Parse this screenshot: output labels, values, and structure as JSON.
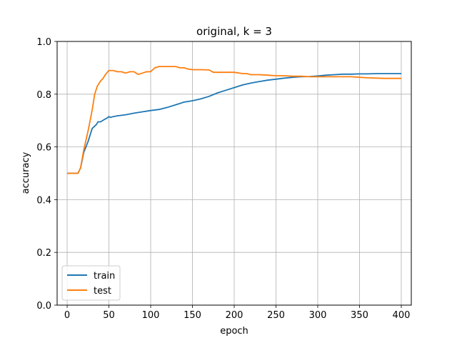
{
  "chart_data": {
    "type": "line",
    "title": "original, k = 3",
    "xlabel": "epoch",
    "ylabel": "accuracy",
    "xlim": [
      -12,
      412
    ],
    "ylim": [
      0.0,
      1.0
    ],
    "xticks": [
      0,
      50,
      100,
      150,
      200,
      250,
      300,
      350,
      400
    ],
    "yticks": [
      0.0,
      0.2,
      0.4,
      0.6,
      0.8,
      1.0
    ],
    "ytick_labels": [
      "0.0",
      "0.2",
      "0.4",
      "0.6",
      "0.8",
      "1.0"
    ],
    "grid": true,
    "legend_position": "lower-left",
    "series": [
      {
        "name": "train",
        "color": "#1f77b4",
        "x": [
          0,
          13,
          16,
          20,
          25,
          30,
          35,
          37,
          40,
          45,
          48,
          50,
          52,
          55,
          60,
          70,
          80,
          90,
          100,
          110,
          120,
          130,
          140,
          150,
          160,
          170,
          180,
          190,
          200,
          210,
          220,
          230,
          240,
          250,
          260,
          270,
          280,
          290,
          300,
          310,
          320,
          330,
          340,
          350,
          360,
          370,
          380,
          390,
          400
        ],
        "y": [
          0.5,
          0.5,
          0.52,
          0.58,
          0.62,
          0.67,
          0.685,
          0.695,
          0.695,
          0.705,
          0.71,
          0.715,
          0.712,
          0.715,
          0.718,
          0.722,
          0.728,
          0.733,
          0.738,
          0.742,
          0.75,
          0.76,
          0.77,
          0.775,
          0.782,
          0.792,
          0.805,
          0.815,
          0.825,
          0.835,
          0.842,
          0.848,
          0.853,
          0.857,
          0.861,
          0.864,
          0.866,
          0.867,
          0.869,
          0.872,
          0.874,
          0.876,
          0.876,
          0.877,
          0.877,
          0.878,
          0.878,
          0.878,
          0.878
        ]
      },
      {
        "name": "test",
        "color": "#ff7f0e",
        "x": [
          0,
          13,
          16,
          20,
          25,
          30,
          33,
          36,
          40,
          43,
          46,
          50,
          55,
          60,
          65,
          70,
          75,
          80,
          85,
          90,
          95,
          100,
          105,
          110,
          115,
          120,
          130,
          135,
          140,
          145,
          150,
          155,
          160,
          170,
          175,
          180,
          190,
          200,
          210,
          215,
          220,
          230,
          240,
          250,
          260,
          270,
          280,
          290,
          300,
          310,
          320,
          330,
          340,
          350,
          360,
          370,
          380,
          390,
          400
        ],
        "y": [
          0.5,
          0.5,
          0.52,
          0.59,
          0.66,
          0.74,
          0.8,
          0.83,
          0.85,
          0.86,
          0.875,
          0.89,
          0.89,
          0.885,
          0.885,
          0.88,
          0.885,
          0.885,
          0.875,
          0.88,
          0.885,
          0.885,
          0.9,
          0.905,
          0.905,
          0.905,
          0.905,
          0.9,
          0.9,
          0.895,
          0.893,
          0.893,
          0.893,
          0.892,
          0.883,
          0.883,
          0.883,
          0.883,
          0.878,
          0.878,
          0.874,
          0.874,
          0.872,
          0.87,
          0.87,
          0.868,
          0.868,
          0.866,
          0.866,
          0.866,
          0.866,
          0.866,
          0.866,
          0.864,
          0.862,
          0.861,
          0.86,
          0.86,
          0.86
        ]
      }
    ]
  }
}
